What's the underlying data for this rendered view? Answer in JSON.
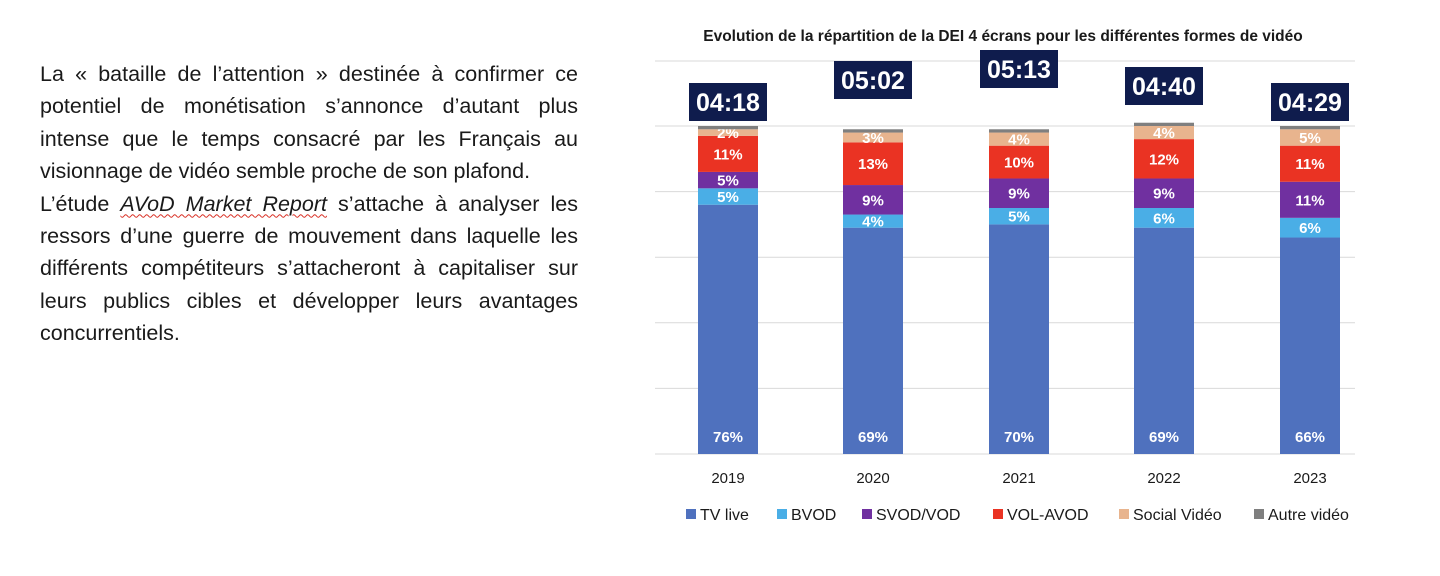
{
  "text": {
    "p1": "La « bataille de l’attention » destinée à confirmer ce potentiel de monétisation s’annonce d’autant plus intense que le temps consacré par les Français au visionnage de vidéo semble proche de son plafond.",
    "p2_before": "L’étude ",
    "p2_italic": "AVoD Market Report",
    "p2_after": " s’attache à analyser les ressors d’une guerre de mouvement dans laquelle les différents compétiteurs s’attacheront à capitaliser sur leurs publics cibles et développer leurs avantages concurrentiels."
  },
  "chart_data": {
    "type": "bar",
    "stacked": true,
    "title": "Evolution de la répartition de la DEI 4 écrans pour les différentes formes de vidéo",
    "categories": [
      "2019",
      "2020",
      "2021",
      "2022",
      "2023"
    ],
    "totals": [
      "04:18",
      "05:02",
      "05:13",
      "04:40",
      "04:29"
    ],
    "series": [
      {
        "name": "TV live",
        "color": "#4f71be",
        "values": [
          76,
          69,
          70,
          69,
          66
        ],
        "labels": [
          "76%",
          "69%",
          "70%",
          "69%",
          "66%"
        ]
      },
      {
        "name": "BVOD",
        "color": "#4aaee6",
        "values": [
          5,
          4,
          5,
          6,
          6
        ],
        "labels": [
          "5%",
          "4%",
          "5%",
          "6%",
          "6%"
        ]
      },
      {
        "name": "SVOD/VOD",
        "color": "#7030a0",
        "values": [
          5,
          9,
          9,
          9,
          11
        ],
        "labels": [
          "5%",
          "9%",
          "9%",
          "9%",
          "11%"
        ]
      },
      {
        "name": "VOL-AVOD",
        "color": "#ea3323",
        "values": [
          11,
          13,
          10,
          12,
          11
        ],
        "labels": [
          "11%",
          "13%",
          "10%",
          "12%",
          "11%"
        ]
      },
      {
        "name": "Social Vidéo",
        "color": "#e8b48e",
        "values": [
          2,
          3,
          4,
          4,
          5
        ],
        "labels": [
          "2%",
          "3%",
          "4%",
          "4%",
          "5%"
        ]
      },
      {
        "name": "Autre vidéo",
        "color": "#7f7f7f",
        "values": [
          1,
          1,
          1,
          1,
          1
        ],
        "labels": [
          "",
          "",
          "",
          "",
          ""
        ]
      }
    ],
    "total_box_color": "#0f1c4d",
    "ylim": [
      0,
      100
    ],
    "grid": true,
    "legend": "bottom"
  }
}
